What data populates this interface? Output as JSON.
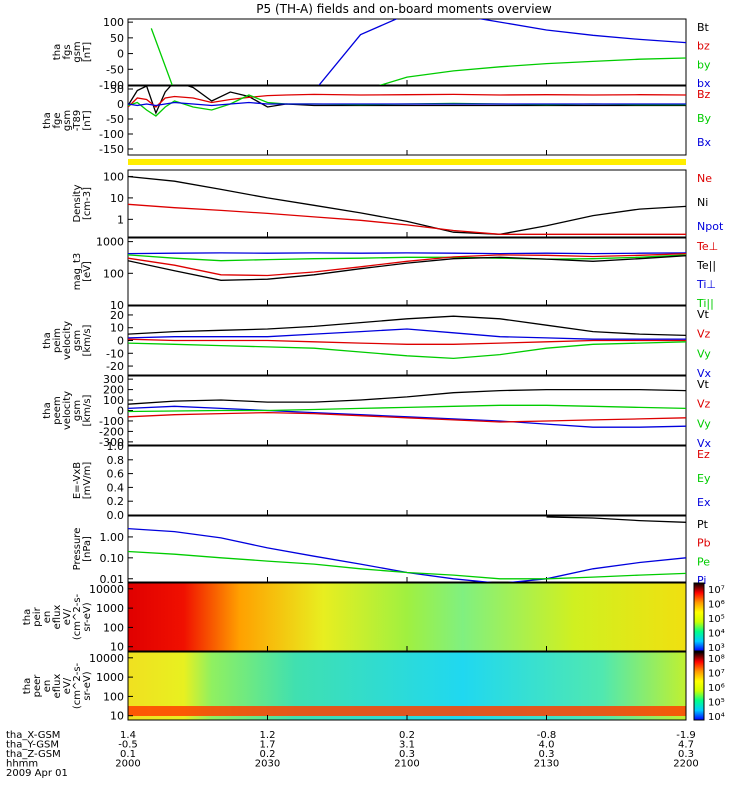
{
  "title": "P5 (TH-A) fields and on-board moments overview",
  "colors": {
    "black": "#000000",
    "red": "#dd0000",
    "green": "#00cc00",
    "blue": "#0000dd",
    "yellow": "#ffee00"
  },
  "chart_data": [
    {
      "type": "line",
      "ylabel": [
        "tha",
        "fgs",
        "gsm",
        "[nT]"
      ],
      "yticks": [
        "100",
        "50",
        "0",
        "-50",
        "-100"
      ],
      "ylim": [
        -100,
        110
      ],
      "legend": [
        {
          "label": "Bt",
          "color": "black"
        },
        {
          "label": "bz",
          "color": "red"
        },
        {
          "label": "by",
          "color": "green"
        },
        {
          "label": "bx",
          "color": "blue"
        }
      ],
      "x": [
        0,
        5,
        10,
        20,
        30,
        40,
        50,
        60,
        70,
        80,
        90,
        100,
        110,
        120
      ],
      "series": [
        {
          "name": "by",
          "color": "green",
          "values": [
            null,
            80,
            -120,
            null,
            null,
            null,
            -120,
            -75,
            -55,
            -42,
            -32,
            -25,
            -18,
            -14
          ]
        },
        {
          "name": "bx",
          "color": "blue",
          "values": [
            null,
            null,
            null,
            null,
            null,
            -120,
            60,
            125,
            125,
            100,
            75,
            58,
            45,
            35
          ]
        }
      ]
    },
    {
      "type": "line",
      "ylabel": [
        "tha",
        "fge",
        "gsm",
        "-T89",
        "[nT]"
      ],
      "yticks": [
        "50",
        "0",
        "-50",
        "-100",
        "-150"
      ],
      "ylim": [
        -170,
        60
      ],
      "legend": [
        {
          "label": "Bz",
          "color": "red"
        },
        {
          "label": "By",
          "color": "green"
        },
        {
          "label": "Bx",
          "color": "blue"
        }
      ],
      "x": [
        0,
        2,
        4,
        6,
        8,
        10,
        14,
        18,
        22,
        26,
        30,
        34,
        40,
        50,
        60,
        70,
        80,
        90,
        100,
        110,
        120
      ],
      "series": [
        {
          "name": "Bt",
          "color": "black",
          "values": [
            -5,
            45,
            60,
            -30,
            40,
            75,
            55,
            10,
            40,
            25,
            -10,
            0,
            -5,
            -5,
            -5,
            -5,
            -5,
            -5,
            -5,
            -5,
            -5
          ]
        },
        {
          "name": "Bz",
          "color": "red",
          "values": [
            -10,
            20,
            15,
            -10,
            20,
            25,
            20,
            5,
            15,
            22,
            28,
            30,
            32,
            30,
            31,
            32,
            30,
            31,
            30,
            31,
            30
          ]
        },
        {
          "name": "By",
          "color": "green",
          "values": [
            -5,
            5,
            -20,
            -40,
            -10,
            10,
            -10,
            -20,
            0,
            30,
            5,
            0,
            0,
            -2,
            0,
            2,
            0,
            -2,
            0,
            -2,
            -2
          ]
        },
        {
          "name": "Bx",
          "color": "blue",
          "values": [
            0,
            -5,
            0,
            -5,
            0,
            5,
            0,
            -5,
            0,
            5,
            0,
            0,
            0,
            0,
            0,
            0,
            0,
            0,
            0,
            0,
            0
          ]
        }
      ]
    },
    {
      "type": "line",
      "ylabel": [
        "Density",
        "[cm-3]"
      ],
      "yticks": [
        "100",
        "10",
        "1"
      ],
      "yscale": "log",
      "ylim": [
        0.15,
        200
      ],
      "legend": [
        {
          "label": "Ne",
          "color": "red"
        },
        {
          "label": "Ni",
          "color": "black"
        },
        {
          "label": "Npot",
          "color": "blue"
        }
      ],
      "x": [
        0,
        10,
        20,
        30,
        40,
        50,
        60,
        70,
        80,
        90,
        100,
        110,
        120
      ],
      "series": [
        {
          "name": "Ni",
          "color": "black",
          "values": [
            100,
            60,
            25,
            10,
            4.5,
            2,
            0.8,
            0.25,
            0.2,
            0.5,
            1.5,
            3,
            4
          ]
        },
        {
          "name": "Ne",
          "color": "red",
          "values": [
            5,
            3.5,
            2.6,
            1.9,
            1.3,
            0.9,
            0.55,
            0.3,
            0.2,
            0.2,
            0.2,
            0.2,
            0.2
          ]
        }
      ]
    },
    {
      "type": "line",
      "ylabel": [
        "mag_t3",
        "[eV]"
      ],
      "yticks": [
        "1000",
        "100",
        "10"
      ],
      "yscale": "log",
      "ylim": [
        10,
        1300
      ],
      "legend": [
        {
          "label": "Te⊥",
          "color": "red"
        },
        {
          "label": "Te||",
          "color": "black"
        },
        {
          "label": "Ti⊥",
          "color": "blue"
        },
        {
          "label": "Ti||",
          "color": "green"
        }
      ],
      "x": [
        0,
        10,
        20,
        30,
        40,
        50,
        60,
        70,
        80,
        90,
        100,
        110,
        120
      ],
      "series": [
        {
          "name": "Ti⊥",
          "color": "blue",
          "values": [
            420,
            430,
            440,
            430,
            440,
            430,
            440,
            430,
            420,
            430,
            420,
            430,
            440
          ]
        },
        {
          "name": "Ti||",
          "color": "green",
          "values": [
            380,
            300,
            250,
            270,
            290,
            300,
            320,
            320,
            300,
            280,
            290,
            320,
            380
          ]
        },
        {
          "name": "Te⊥",
          "color": "red",
          "values": [
            300,
            180,
            90,
            85,
            110,
            160,
            240,
            330,
            380,
            370,
            340,
            370,
            420
          ]
        },
        {
          "name": "Te||",
          "color": "black",
          "values": [
            250,
            120,
            60,
            65,
            90,
            140,
            210,
            290,
            320,
            280,
            240,
            290,
            360
          ]
        }
      ]
    },
    {
      "type": "line",
      "ylabel": [
        "tha",
        "peim",
        "velocity",
        "gsm",
        "[km/s]"
      ],
      "yticks": [
        "20",
        "10",
        "0",
        "-10",
        "-20"
      ],
      "ylim": [
        -27,
        27
      ],
      "legend": [
        {
          "label": "Vt",
          "color": "black"
        },
        {
          "label": "Vz",
          "color": "red"
        },
        {
          "label": "Vy",
          "color": "green"
        },
        {
          "label": "Vx",
          "color": "blue"
        }
      ],
      "x": [
        0,
        10,
        20,
        30,
        40,
        50,
        60,
        70,
        80,
        90,
        100,
        110,
        120
      ],
      "series": [
        {
          "name": "Vt",
          "color": "black",
          "values": [
            5,
            7,
            8,
            9,
            11,
            14,
            17,
            19,
            17,
            12,
            7,
            5,
            4
          ]
        },
        {
          "name": "Vx",
          "color": "blue",
          "values": [
            2,
            3,
            3,
            3,
            5,
            7,
            9,
            6,
            3,
            2,
            1,
            1,
            1
          ]
        },
        {
          "name": "Vz",
          "color": "red",
          "values": [
            1,
            0,
            0,
            0,
            -1,
            -2,
            -3,
            -3,
            -2,
            -1,
            0,
            0,
            0
          ]
        },
        {
          "name": "Vy",
          "color": "green",
          "values": [
            -2,
            -3,
            -4,
            -5,
            -6,
            -9,
            -12,
            -14,
            -11,
            -6,
            -3,
            -2,
            -1
          ]
        }
      ]
    },
    {
      "type": "line",
      "ylabel": [
        "tha",
        "peem",
        "velocity",
        "gsm",
        "[km/s]"
      ],
      "yticks": [
        "300",
        "200",
        "100",
        "0",
        "-100",
        "-200",
        "-300"
      ],
      "ylim": [
        -330,
        330
      ],
      "legend": [
        {
          "label": "Vt",
          "color": "black"
        },
        {
          "label": "Vz",
          "color": "red"
        },
        {
          "label": "Vy",
          "color": "green"
        },
        {
          "label": "Vx",
          "color": "blue"
        }
      ],
      "x": [
        0,
        10,
        20,
        30,
        40,
        50,
        60,
        70,
        80,
        90,
        100,
        110,
        120
      ],
      "series": [
        {
          "name": "Vt",
          "color": "black",
          "values": [
            60,
            90,
            100,
            80,
            80,
            100,
            130,
            170,
            190,
            200,
            200,
            200,
            190
          ]
        },
        {
          "name": "Vx",
          "color": "blue",
          "values": [
            20,
            40,
            20,
            0,
            -20,
            -40,
            -60,
            -80,
            -100,
            -130,
            -160,
            -160,
            -150
          ]
        },
        {
          "name": "Vz",
          "color": "red",
          "values": [
            -60,
            -40,
            -30,
            -20,
            -30,
            -50,
            -70,
            -90,
            -110,
            -100,
            -90,
            -80,
            -70
          ]
        },
        {
          "name": "Vy",
          "color": "green",
          "values": [
            -10,
            -5,
            0,
            0,
            10,
            20,
            30,
            40,
            50,
            50,
            40,
            30,
            20
          ]
        }
      ]
    },
    {
      "type": "line",
      "ylabel": [
        "E=-VxB",
        "[mV/m]"
      ],
      "yticks": [
        "1.0",
        "0.8",
        "0.6",
        "0.4",
        "0.2",
        "0.0"
      ],
      "ylim": [
        0,
        1
      ],
      "legend": [
        {
          "label": "Ez",
          "color": "red"
        },
        {
          "label": "Ey",
          "color": "green"
        },
        {
          "label": "Ex",
          "color": "blue"
        }
      ]
    },
    {
      "type": "line",
      "ylabel": [
        "Pressure",
        "[nPa]"
      ],
      "yticks": [
        "1.00",
        "0.10",
        "0.01"
      ],
      "yscale": "log",
      "ylim": [
        0.007,
        10
      ],
      "legend": [
        {
          "label": "Pt",
          "color": "black"
        },
        {
          "label": "Pb",
          "color": "red"
        },
        {
          "label": "Pe",
          "color": "green"
        },
        {
          "label": "Pi",
          "color": "blue"
        }
      ],
      "x": [
        0,
        10,
        20,
        30,
        40,
        50,
        60,
        70,
        80,
        90,
        100,
        110,
        120
      ],
      "series": [
        {
          "name": "Pi",
          "color": "blue",
          "values": [
            2.5,
            1.8,
            0.9,
            0.3,
            0.12,
            0.05,
            0.02,
            0.01,
            0.006,
            0.01,
            0.03,
            0.06,
            0.1
          ]
        },
        {
          "name": "Pe",
          "color": "green",
          "values": [
            0.2,
            0.15,
            0.1,
            0.07,
            0.05,
            0.03,
            0.02,
            0.015,
            0.01,
            0.01,
            0.012,
            0.015,
            0.018
          ]
        },
        {
          "name": "Pt",
          "color": "black",
          "values": [
            null,
            null,
            null,
            null,
            null,
            null,
            null,
            null,
            null,
            9,
            8,
            6,
            5
          ]
        }
      ]
    },
    {
      "type": "heatmap",
      "ylabel": [
        "tha",
        "peir",
        "en",
        "eflux",
        "eV/",
        "(cm^2-s-",
        "sr-eV)"
      ],
      "yticks": [
        "10000",
        "1000",
        "100",
        "10"
      ],
      "yscale": "log",
      "ylim": [
        6,
        20000
      ],
      "colorbar_ticks": [
        "10⁷",
        "10⁶",
        "10⁵",
        "10⁴",
        "10³"
      ],
      "colorscale": [
        "#0000ff",
        "#00ccff",
        "#00ff88",
        "#ccff00",
        "#ffff00",
        "#ff9900",
        "#ff0000",
        "#000000"
      ]
    },
    {
      "type": "heatmap",
      "ylabel": [
        "tha",
        "peer",
        "en",
        "eflux",
        "eV/",
        "(cm^2-s-",
        "sr-eV)"
      ],
      "yticks": [
        "10000",
        "1000",
        "100",
        "10"
      ],
      "yscale": "log",
      "ylim": [
        6,
        20000
      ],
      "colorbar_ticks": [
        "10⁸",
        "10⁷",
        "10⁶",
        "10⁵",
        "10⁴"
      ],
      "colorscale": [
        "#0000ff",
        "#00ccff",
        "#00ff88",
        "#ccff00",
        "#ffff00",
        "#ff9900",
        "#ff0000",
        "#000000"
      ]
    }
  ],
  "footer": {
    "rows": [
      {
        "label": "tha_X-GSM",
        "values": [
          "1.4",
          "1.2",
          "0.2",
          "-0.8",
          "-1.9"
        ]
      },
      {
        "label": "tha_Y-GSM",
        "values": [
          "-0.5",
          "1.7",
          "3.1",
          "4.0",
          "4.7"
        ]
      },
      {
        "label": "tha_Z-GSM",
        "values": [
          "0.1",
          "0.2",
          "0.3",
          "0.3",
          "0.3"
        ]
      },
      {
        "label": "hhmm",
        "values": [
          "2000",
          "2030",
          "2100",
          "2130",
          "2200"
        ]
      }
    ],
    "date": "2009 Apr 01"
  }
}
